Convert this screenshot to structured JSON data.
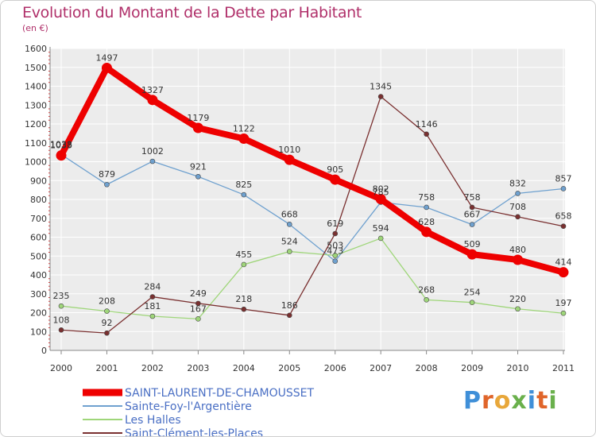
{
  "title": "Evolution du Montant de la Dette par Habitant",
  "subtitle": "(en €)",
  "logo": {
    "letters": [
      {
        "ch": "P",
        "color": "#3f8fd8"
      },
      {
        "ch": "r",
        "color": "#e0652a"
      },
      {
        "ch": "o",
        "color": "#e8a73a"
      },
      {
        "ch": "x",
        "color": "#6ab04c"
      },
      {
        "ch": "i",
        "color": "#3f8fd8"
      },
      {
        "ch": "t",
        "color": "#e0652a"
      },
      {
        "ch": "i",
        "color": "#6ab04c"
      }
    ]
  },
  "chart_data": {
    "type": "line",
    "title": "Evolution du Montant de la Dette par Habitant",
    "ylabel": "(en €)",
    "x": [
      "2000",
      "2001",
      "2002",
      "2003",
      "2004",
      "2005",
      "2006",
      "2007",
      "2008",
      "2009",
      "2010",
      "2011"
    ],
    "ylim": [
      0,
      1600
    ],
    "yticks": [
      0,
      100,
      200,
      300,
      400,
      500,
      600,
      700,
      800,
      900,
      1000,
      1100,
      1200,
      1300,
      1400,
      1500,
      1600
    ],
    "grid": true,
    "legend_position": "bottom-left",
    "series": [
      {
        "name": "SAINT-LAURENT-DE-CHAMOUSSET",
        "color": "#ee0000",
        "bold": true,
        "values": [
          1033,
          1497,
          1327,
          1179,
          1122,
          1010,
          905,
          802,
          628,
          509,
          480,
          414
        ]
      },
      {
        "name": "Sainte-Foy-l'Argentière",
        "color": "#6fa1cf",
        "values": [
          1038,
          879,
          1002,
          921,
          825,
          668,
          473,
          785,
          758,
          667,
          832,
          857
        ]
      },
      {
        "name": "Les Halles",
        "color": "#9fd67a",
        "values": [
          235,
          208,
          181,
          167,
          455,
          524,
          503,
          594,
          268,
          254,
          220,
          197
        ]
      },
      {
        "name": "Saint-Clément-les-Places",
        "color": "#7a3030",
        "values": [
          108,
          92,
          284,
          249,
          218,
          186,
          619,
          1345,
          1146,
          758,
          708,
          658
        ]
      }
    ],
    "labels": [
      [
        "1033",
        "1497",
        "1327",
        "1179",
        "1122",
        "1010",
        "905",
        "802",
        "628",
        "509",
        "480",
        "414"
      ],
      [
        "1038",
        "879",
        "1002",
        "921",
        "825",
        "668",
        "473",
        "785",
        "758",
        "667",
        "832",
        "857"
      ],
      [
        "235",
        "208",
        "181",
        "167",
        "455",
        "524",
        "503",
        "594",
        "268",
        "254",
        "220",
        "197"
      ],
      [
        "108",
        "92",
        "284",
        "249",
        "218",
        "186",
        "619",
        "1345",
        "1146",
        "758",
        "708",
        "658"
      ]
    ]
  }
}
